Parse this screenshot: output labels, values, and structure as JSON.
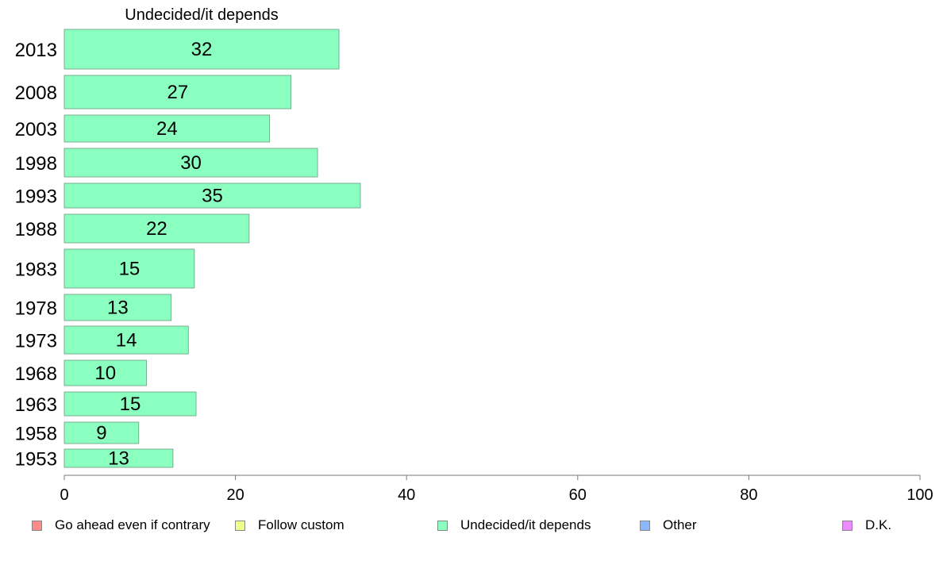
{
  "chart_data": {
    "type": "bar",
    "orientation": "horizontal",
    "title": "Undecided/it depends",
    "categories": [
      "2013",
      "2008",
      "2003",
      "1998",
      "1993",
      "1988",
      "1983",
      "1978",
      "1973",
      "1968",
      "1963",
      "1958",
      "1953"
    ],
    "series": [
      {
        "name": "Undecided/it depends",
        "color": "#8affc0",
        "values": [
          32,
          27,
          24,
          30,
          35,
          22,
          15,
          13,
          14,
          10,
          15,
          9,
          13
        ],
        "plotted_values": [
          32.1,
          26.5,
          24.0,
          29.6,
          34.6,
          21.6,
          15.2,
          12.5,
          14.5,
          9.6,
          15.4,
          8.7,
          12.7
        ]
      }
    ],
    "xlim": [
      0,
      100
    ],
    "xticks": [
      0,
      20,
      40,
      60,
      80,
      100
    ],
    "grid": false,
    "legend": {
      "position": "bottom",
      "items": [
        {
          "label": "Go ahead even if contrary",
          "color": "#ff8a8a"
        },
        {
          "label": "Follow custom",
          "color": "#eeff8a"
        },
        {
          "label": "Undecided/it depends",
          "color": "#8affc0"
        },
        {
          "label": "Other",
          "color": "#8ab8ff"
        },
        {
          "label": "D.K.",
          "color": "#ee8aff"
        }
      ]
    }
  }
}
